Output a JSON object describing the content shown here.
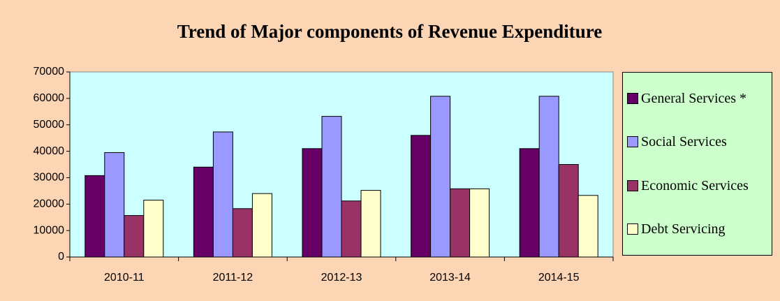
{
  "chart_data": {
    "type": "bar",
    "title": "Trend of Major components of Revenue Expenditure",
    "categories": [
      "2010-11",
      "2011-12",
      "2012-13",
      "2013-14",
      "2014-15"
    ],
    "series": [
      {
        "name": "General Services *",
        "color": "#660066",
        "values": [
          30800,
          34000,
          41000,
          46000,
          41000
        ]
      },
      {
        "name": "Social Services",
        "color": "#9999ff",
        "values": [
          39500,
          47300,
          53200,
          60800,
          60800
        ]
      },
      {
        "name": "Economic Services",
        "color": "#993366",
        "values": [
          15700,
          18300,
          21200,
          25800,
          35000
        ]
      },
      {
        "name": "Debt Servicing",
        "color": "#ffffcc",
        "values": [
          21500,
          24000,
          25200,
          25800,
          23300
        ]
      }
    ],
    "ylim": [
      0,
      70000
    ],
    "yticks": [
      0,
      10000,
      20000,
      30000,
      40000,
      50000,
      60000,
      70000
    ],
    "grid": false
  }
}
